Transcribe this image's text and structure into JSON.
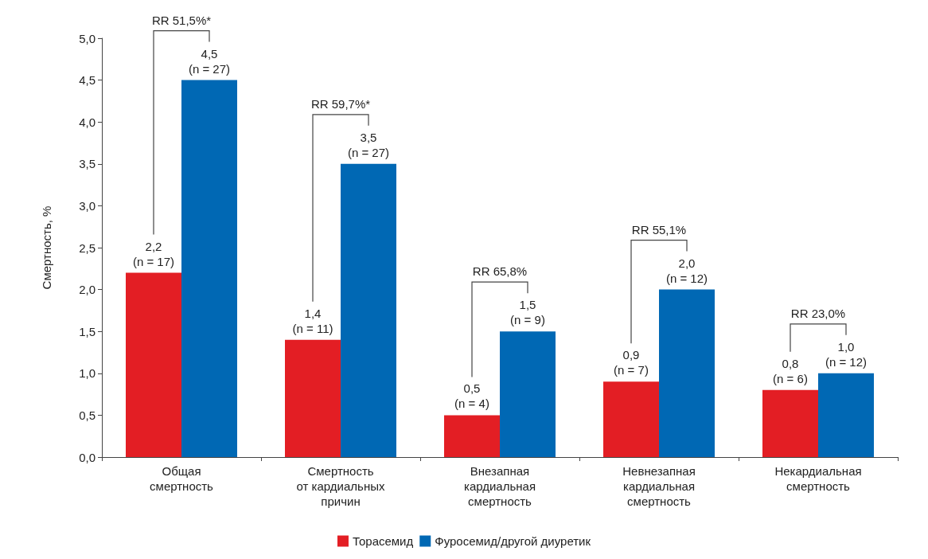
{
  "chart_data": {
    "type": "bar",
    "ylabel": "Смертность, %",
    "categories": [
      "Общая\nсмертность",
      "Смертность\nот кардиальных\nпричин",
      "Внезапная\nкардиальная\nсмертность",
      "Невнезапная\nкардиальная\nсмертность",
      "Некардиальная\nсмертность"
    ],
    "series": [
      {
        "name": "Торасемид",
        "color": "#e31e24",
        "values": [
          2.2,
          1.4,
          0.5,
          0.9,
          0.8
        ],
        "value_labels": [
          "2,2\n(n = 17)",
          "1,4\n(n = 11)",
          "0,5\n(n = 4)",
          "0,9\n(n = 7)",
          "0,8\n(n = 6)"
        ]
      },
      {
        "name": "Фуросемид/другой диуретик",
        "color": "#0068b4",
        "values": [
          4.5,
          3.5,
          1.5,
          2.0,
          1.0
        ],
        "value_labels": [
          "4,5\n(n = 27)",
          "3,5\n(n = 27)",
          "1,5\n(n = 9)",
          "2,0\n(n = 12)",
          "1,0\n(n = 12)"
        ]
      }
    ],
    "ylim": [
      0,
      5
    ],
    "yticks": [
      {
        "value": 0,
        "label": "0,0"
      },
      {
        "value": 0.5,
        "label": "0,5"
      },
      {
        "value": 1,
        "label": "1,0"
      },
      {
        "value": 1.5,
        "label": "1,5"
      },
      {
        "value": 2,
        "label": "2,0"
      },
      {
        "value": 2.5,
        "label": "2,5"
      },
      {
        "value": 3,
        "label": "3,0"
      },
      {
        "value": 3.5,
        "label": "3,5"
      },
      {
        "value": 4,
        "label": "4,0"
      },
      {
        "value": 4.5,
        "label": "4,5"
      },
      {
        "value": 5,
        "label": "5,0"
      }
    ],
    "annotations": [
      "RR 51,5%*",
      "RR 59,7%*",
      "RR 65,8%",
      "RR 55,1%",
      "RR 23,0%"
    ],
    "grid": false,
    "legend": "bottom"
  }
}
